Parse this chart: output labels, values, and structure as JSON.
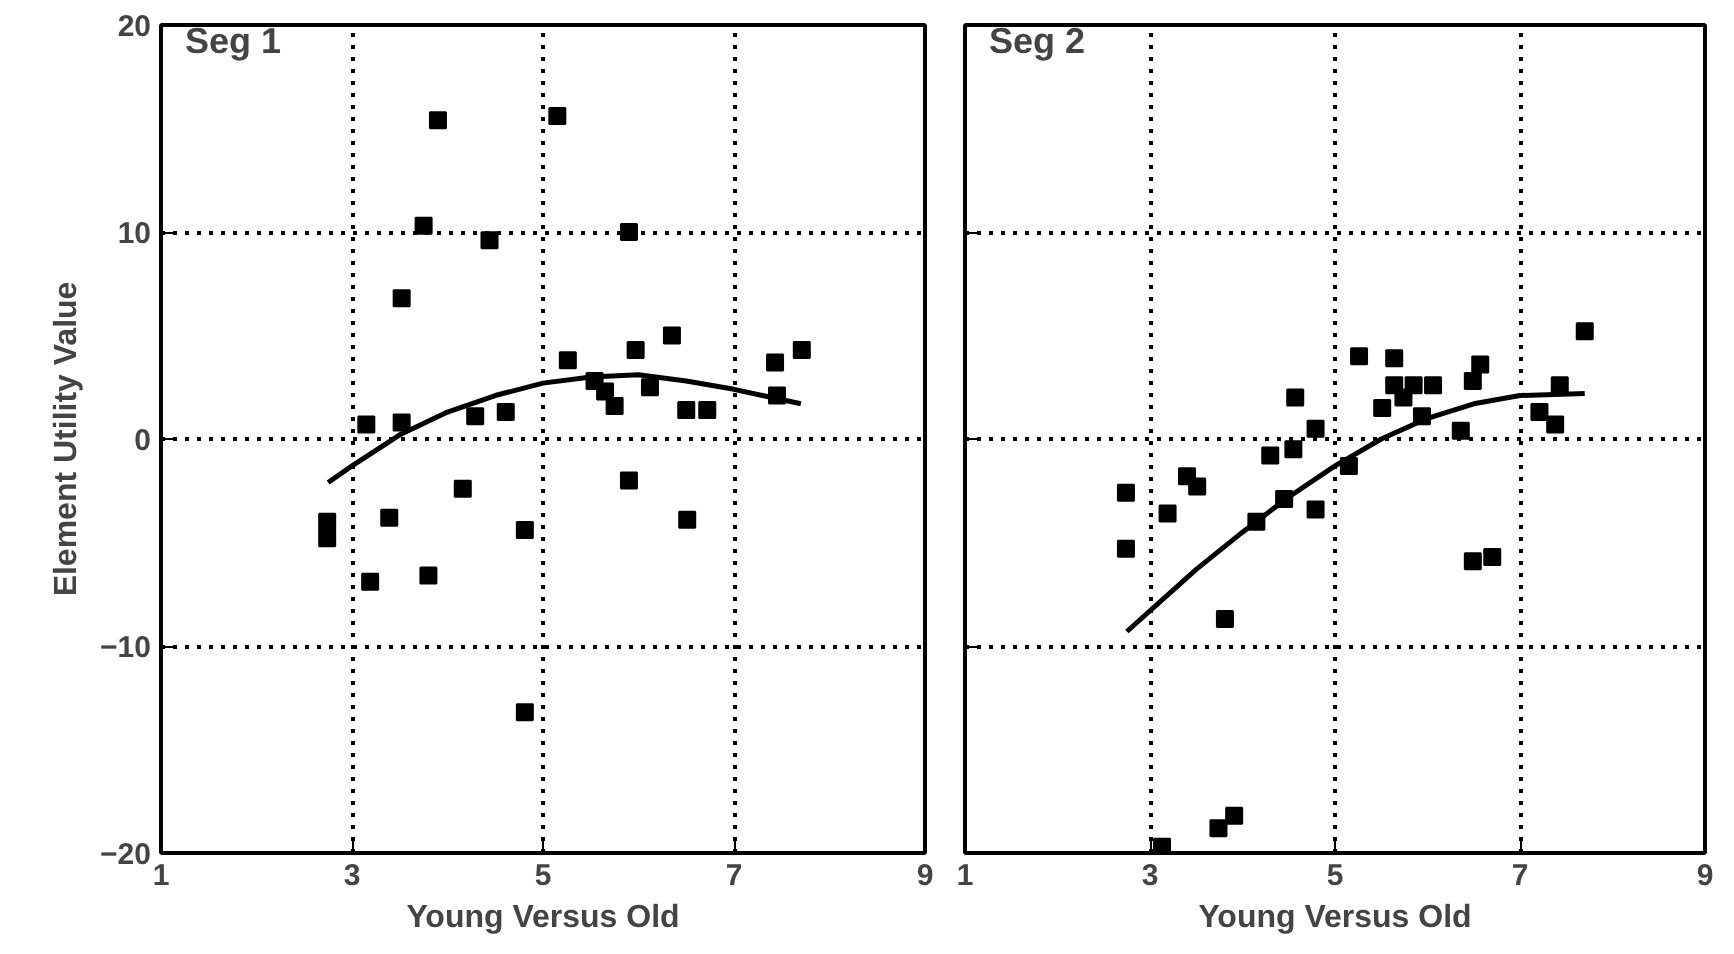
{
  "chart_data": [
    {
      "type": "scatter",
      "annotations": [
        "Seg 1"
      ],
      "xlabel": "Young Versus Old",
      "ylabel": "Element Utility Value",
      "xlim": [
        1,
        9
      ],
      "ylim": [
        -20,
        20
      ],
      "xticks": [
        1,
        3,
        5,
        7,
        9
      ],
      "yticks": [
        -20,
        -10,
        0,
        10,
        20
      ],
      "grid": true,
      "marker": "square",
      "series": [
        {
          "color": "#000000",
          "x": [
            3.9,
            5.15,
            3.75,
            4.44,
            5.9,
            3.52,
            5.26,
            5.97,
            6.35,
            7.71,
            7.43,
            7.45,
            5.54,
            5.65,
            5.75,
            6.12,
            6.5,
            6.72,
            3.15,
            3.52,
            4.29,
            4.61,
            2.74,
            2.74,
            3.39,
            3.19,
            3.8,
            4.16,
            4.81,
            5.9,
            6.51,
            4.81
          ],
          "values": [
            15.4,
            15.6,
            10.3,
            9.6,
            10.0,
            6.8,
            3.8,
            4.3,
            5.0,
            4.3,
            3.7,
            2.1,
            2.8,
            2.3,
            1.6,
            2.5,
            1.4,
            1.4,
            0.7,
            0.8,
            1.1,
            1.3,
            -4.0,
            -4.8,
            -3.8,
            -6.9,
            -6.6,
            -2.4,
            -4.4,
            -2.0,
            -3.9,
            -13.2
          ]
        },
        {
          "type": "line",
          "color": "#000000",
          "marker": "none",
          "x": [
            2.75,
            3,
            3.5,
            4,
            4.5,
            5,
            5.5,
            6,
            6.5,
            7,
            7.7
          ],
          "values": [
            -2.1,
            -1.3,
            0.2,
            1.3,
            2.1,
            2.7,
            3.0,
            3.1,
            2.8,
            2.4,
            1.7
          ]
        }
      ]
    },
    {
      "type": "scatter",
      "annotations": [
        "Seg 2"
      ],
      "xlabel": "Young Versus Old",
      "xlim": [
        1,
        9
      ],
      "ylim": [
        -20,
        20
      ],
      "xticks": [
        1,
        3,
        5,
        7,
        9
      ],
      "yticks": [
        -20,
        -10,
        0,
        10,
        20
      ],
      "tick_labels": "x",
      "grid": true,
      "marker": "square",
      "series": [
        {
          "color": "#000000",
          "x": [
            7.7,
            5.26,
            5.64,
            5.64,
            5.85,
            6.06,
            5.74,
            5.51,
            5.94,
            6.57,
            6.49,
            7.43,
            7.21,
            7.38,
            4.57,
            4.79,
            6.36,
            4.3,
            4.55,
            2.74,
            2.74,
            3.19,
            3.4,
            3.51,
            5.15,
            4.45,
            4.15,
            4.79,
            3.81,
            6.49,
            6.7,
            3.13,
            3.74,
            3.91
          ],
          "values": [
            5.2,
            4.0,
            3.9,
            2.6,
            2.6,
            2.6,
            2.0,
            1.5,
            1.1,
            3.6,
            2.8,
            2.6,
            1.3,
            0.7,
            2.0,
            0.5,
            0.4,
            -0.8,
            -0.5,
            -2.6,
            -5.3,
            -3.6,
            -1.8,
            -2.3,
            -1.3,
            -2.9,
            -4.0,
            -3.4,
            -8.7,
            -5.9,
            -5.7,
            -19.7,
            -18.8,
            -18.2
          ]
        },
        {
          "type": "line",
          "color": "#000000",
          "marker": "none",
          "x": [
            2.75,
            3.5,
            4,
            4.5,
            5,
            5.5,
            6,
            6.5,
            7,
            7.7
          ],
          "values": [
            -9.3,
            -6.3,
            -4.5,
            -2.8,
            -1.3,
            0.0,
            1.0,
            1.7,
            2.1,
            2.2
          ]
        }
      ]
    }
  ]
}
